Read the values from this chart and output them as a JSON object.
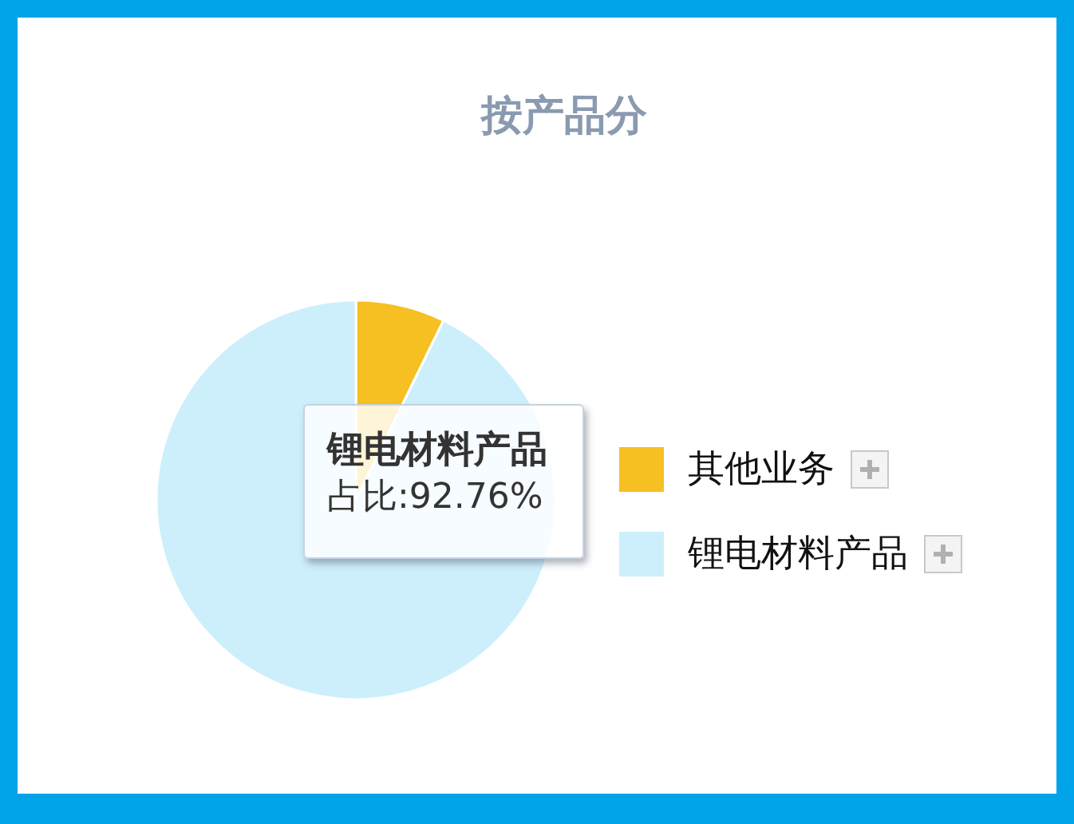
{
  "chart_data": {
    "type": "pie",
    "title": "按产品分",
    "categories": [
      "其他业务",
      "锂电材料产品"
    ],
    "values": [
      7.24,
      92.76
    ],
    "colors": [
      "#f6c022",
      "#cdeffc"
    ],
    "value_labels": [
      null,
      "占比:92.76%"
    ],
    "legend": "right"
  }
}
